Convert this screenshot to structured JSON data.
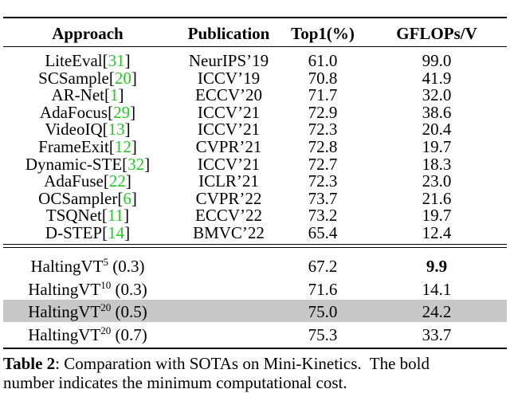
{
  "table": {
    "header": [
      "Approach",
      "Publication",
      "Top1(%)",
      "GFLOPs/V"
    ],
    "rows": [
      {
        "name": "LiteEval",
        "cite": "[31]",
        "publication": "NeurIPS’19",
        "top1": "61.0",
        "gflops": "99.0"
      },
      {
        "name": "SCSample",
        "cite": "[20]",
        "publication": "ICCV’19",
        "top1": "70.8",
        "gflops": "41.9"
      },
      {
        "name": "AR-Net",
        "cite": "[1]",
        "publication": "ECCV’20",
        "top1": "71.7",
        "gflops": "32.0"
      },
      {
        "name": "AdaFocus",
        "cite": "[29]",
        "publication": "ICCV’21",
        "top1": "72.9",
        "gflops": "38.6"
      },
      {
        "name": "VideoIQ",
        "cite": "[13]",
        "publication": "ICCV’21",
        "top1": "72.3",
        "gflops": "20.4"
      },
      {
        "name": "FrameExit",
        "cite": "[12]",
        "publication": "CVPR’21",
        "top1": "72.8",
        "gflops": "19.7"
      },
      {
        "name": "Dynamic-STE",
        "cite": "[32]",
        "publication": "ICCV’21",
        "top1": "72.7",
        "gflops": "18.3"
      },
      {
        "name": "AdaFuse",
        "cite": "[22]",
        "publication": "ICLR’21",
        "top1": "72.3",
        "gflops": "23.0"
      },
      {
        "name": "OCSampler",
        "cite": "[6]",
        "publication": "CVPR’22",
        "top1": "73.7",
        "gflops": "21.6"
      },
      {
        "name": "TSQNet",
        "cite": "[11]",
        "publication": "ECCV’22",
        "top1": "73.2",
        "gflops": "19.7"
      },
      {
        "name": "D-STEP",
        "cite": "[14]",
        "publication": "BMVC’22",
        "top1": "65.4",
        "gflops": "12.4"
      }
    ],
    "ours": [
      {
        "name": "HaltingVT",
        "sup": "5",
        "param": "(0.3)",
        "top1": "67.2",
        "gflops": "9.9",
        "bold": true,
        "highlight": false
      },
      {
        "name": "HaltingVT",
        "sup": "10",
        "param": "(0.3)",
        "top1": "71.6",
        "gflops": "14.1",
        "bold": false,
        "highlight": false
      },
      {
        "name": "HaltingVT",
        "sup": "20",
        "param": "(0.5)",
        "top1": "75.0",
        "gflops": "24.2",
        "bold": false,
        "highlight": true
      },
      {
        "name": "HaltingVT",
        "sup": "20",
        "param": "(0.7)",
        "top1": "75.3",
        "gflops": "33.7",
        "bold": false,
        "highlight": false
      }
    ]
  },
  "caption": {
    "label": "Table 2",
    "line1": ": Comparation with SOTAs on Mini-Kinetics.  The bold",
    "line2": "number indicates the minimum computational cost."
  }
}
